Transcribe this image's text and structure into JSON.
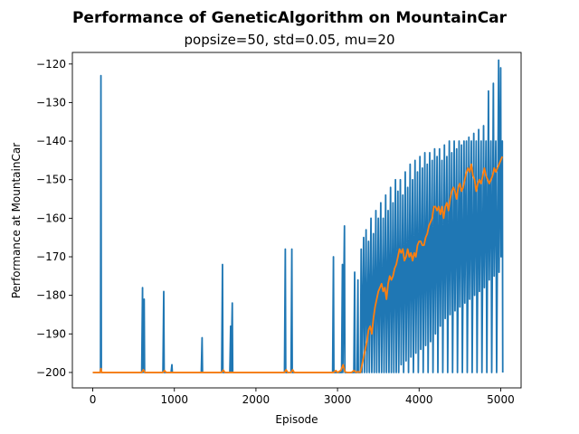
{
  "chart_data": {
    "type": "line",
    "title": "Performance of GeneticAlgorithm on MountainCar",
    "subtitle": "popsize=50, std=0.05, mu=20",
    "xlabel": "Episode",
    "ylabel": "Performance at MountainCar",
    "xlim": [
      -250,
      5250
    ],
    "ylim": [
      -204,
      -117
    ],
    "xticks": [
      0,
      1000,
      2000,
      3000,
      4000,
      5000
    ],
    "yticks": [
      -200,
      -190,
      -180,
      -170,
      -160,
      -150,
      -140,
      -130,
      -120
    ],
    "grid": false,
    "series": [
      {
        "color": "#1f77b4",
        "points": [
          [
            0,
            -200
          ],
          [
            90,
            -200
          ],
          [
            95,
            -199
          ],
          [
            100,
            -123
          ],
          [
            105,
            -200
          ],
          [
            600,
            -200
          ],
          [
            610,
            -178
          ],
          [
            615,
            -200
          ],
          [
            630,
            -181
          ],
          [
            635,
            -200
          ],
          [
            860,
            -200
          ],
          [
            870,
            -179
          ],
          [
            875,
            -200
          ],
          [
            960,
            -200
          ],
          [
            970,
            -198
          ],
          [
            975,
            -200
          ],
          [
            1330,
            -200
          ],
          [
            1340,
            -191
          ],
          [
            1345,
            -200
          ],
          [
            1580,
            -200
          ],
          [
            1590,
            -172
          ],
          [
            1595,
            -200
          ],
          [
            1680,
            -200
          ],
          [
            1690,
            -188
          ],
          [
            1695,
            -200
          ],
          [
            1710,
            -182
          ],
          [
            1715,
            -200
          ],
          [
            2350,
            -200
          ],
          [
            2360,
            -168
          ],
          [
            2365,
            -200
          ],
          [
            2430,
            -200
          ],
          [
            2440,
            -168
          ],
          [
            2445,
            -200
          ],
          [
            2940,
            -200
          ],
          [
            2950,
            -170
          ],
          [
            2955,
            -200
          ],
          [
            3050,
            -200
          ],
          [
            3060,
            -172
          ],
          [
            3065,
            -200
          ],
          [
            3085,
            -162
          ],
          [
            3090,
            -200
          ],
          [
            3200,
            -200
          ],
          [
            3210,
            -174
          ],
          [
            3215,
            -200
          ],
          [
            3240,
            -200
          ],
          [
            3250,
            -176
          ],
          [
            3255,
            -200
          ],
          [
            3280,
            -200
          ],
          [
            3290,
            -168
          ],
          [
            3300,
            -200
          ],
          [
            3320,
            -165
          ],
          [
            3330,
            -200
          ],
          [
            3350,
            -163
          ],
          [
            3360,
            -200
          ],
          [
            3380,
            -166
          ],
          [
            3390,
            -200
          ],
          [
            3410,
            -160
          ],
          [
            3420,
            -200
          ],
          [
            3440,
            -164
          ],
          [
            3450,
            -200
          ],
          [
            3470,
            -158
          ],
          [
            3480,
            -200
          ],
          [
            3500,
            -160
          ],
          [
            3510,
            -200
          ],
          [
            3530,
            -156
          ],
          [
            3540,
            -200
          ],
          [
            3560,
            -160
          ],
          [
            3570,
            -200
          ],
          [
            3590,
            -154
          ],
          [
            3600,
            -200
          ],
          [
            3620,
            -158
          ],
          [
            3630,
            -200
          ],
          [
            3650,
            -152
          ],
          [
            3660,
            -200
          ],
          [
            3680,
            -156
          ],
          [
            3690,
            -200
          ],
          [
            3710,
            -150
          ],
          [
            3720,
            -200
          ],
          [
            3740,
            -153
          ],
          [
            3750,
            -200
          ],
          [
            3770,
            -150
          ],
          [
            3780,
            -198
          ],
          [
            3800,
            -154
          ],
          [
            3810,
            -200
          ],
          [
            3830,
            -148
          ],
          [
            3840,
            -197
          ],
          [
            3860,
            -152
          ],
          [
            3870,
            -200
          ],
          [
            3890,
            -146
          ],
          [
            3900,
            -196
          ],
          [
            3920,
            -150
          ],
          [
            3930,
            -200
          ],
          [
            3950,
            -145
          ],
          [
            3960,
            -195
          ],
          [
            3980,
            -148
          ],
          [
            3990,
            -200
          ],
          [
            4010,
            -144
          ],
          [
            4020,
            -194
          ],
          [
            4040,
            -147
          ],
          [
            4050,
            -200
          ],
          [
            4070,
            -143
          ],
          [
            4080,
            -193
          ],
          [
            4100,
            -146
          ],
          [
            4110,
            -200
          ],
          [
            4130,
            -143
          ],
          [
            4140,
            -192
          ],
          [
            4160,
            -145
          ],
          [
            4170,
            -200
          ],
          [
            4190,
            -142
          ],
          [
            4200,
            -190
          ],
          [
            4220,
            -144
          ],
          [
            4230,
            -200
          ],
          [
            4250,
            -142
          ],
          [
            4260,
            -188
          ],
          [
            4280,
            -145
          ],
          [
            4290,
            -200
          ],
          [
            4310,
            -141
          ],
          [
            4320,
            -186
          ],
          [
            4340,
            -144
          ],
          [
            4350,
            -200
          ],
          [
            4370,
            -140
          ],
          [
            4380,
            -185
          ],
          [
            4400,
            -143
          ],
          [
            4410,
            -200
          ],
          [
            4430,
            -140
          ],
          [
            4440,
            -184
          ],
          [
            4460,
            -142
          ],
          [
            4470,
            -200
          ],
          [
            4490,
            -140
          ],
          [
            4500,
            -183
          ],
          [
            4520,
            -141
          ],
          [
            4530,
            -200
          ],
          [
            4550,
            -140
          ],
          [
            4560,
            -182
          ],
          [
            4580,
            -140
          ],
          [
            4590,
            -200
          ],
          [
            4610,
            -139
          ],
          [
            4620,
            -181
          ],
          [
            4640,
            -140
          ],
          [
            4650,
            -200
          ],
          [
            4670,
            -138
          ],
          [
            4680,
            -180
          ],
          [
            4700,
            -140
          ],
          [
            4710,
            -200
          ],
          [
            4730,
            -137
          ],
          [
            4740,
            -179
          ],
          [
            4760,
            -140
          ],
          [
            4770,
            -200
          ],
          [
            4790,
            -136
          ],
          [
            4800,
            -178
          ],
          [
            4820,
            -140
          ],
          [
            4830,
            -200
          ],
          [
            4850,
            -127
          ],
          [
            4860,
            -176
          ],
          [
            4880,
            -140
          ],
          [
            4890,
            -200
          ],
          [
            4910,
            -125
          ],
          [
            4920,
            -175
          ],
          [
            4940,
            -140
          ],
          [
            4950,
            -200
          ],
          [
            4975,
            -119
          ],
          [
            4980,
            -174
          ],
          [
            5000,
            -121
          ],
          [
            5005,
            -170
          ],
          [
            5020,
            -140
          ],
          [
            5025,
            -200
          ]
        ]
      },
      {
        "color": "#ff7f0e",
        "points": [
          [
            0,
            -200
          ],
          [
            90,
            -200
          ],
          [
            100,
            -199
          ],
          [
            110,
            -200
          ],
          [
            600,
            -200
          ],
          [
            620,
            -199.3
          ],
          [
            640,
            -200
          ],
          [
            860,
            -200
          ],
          [
            880,
            -199.5
          ],
          [
            900,
            -200
          ],
          [
            1580,
            -200
          ],
          [
            1600,
            -199.4
          ],
          [
            1620,
            -200
          ],
          [
            2350,
            -200
          ],
          [
            2370,
            -199.3
          ],
          [
            2390,
            -200
          ],
          [
            2430,
            -200
          ],
          [
            2450,
            -199.3
          ],
          [
            2470,
            -200
          ],
          [
            2950,
            -200
          ],
          [
            2980,
            -199.5
          ],
          [
            3000,
            -200
          ],
          [
            3040,
            -199.5
          ],
          [
            3070,
            -198
          ],
          [
            3090,
            -199.8
          ],
          [
            3120,
            -200
          ],
          [
            3170,
            -200
          ],
          [
            3200,
            -199.5
          ],
          [
            3230,
            -200
          ],
          [
            3250,
            -199.8
          ],
          [
            3280,
            -200
          ],
          [
            3300,
            -198
          ],
          [
            3320,
            -196
          ],
          [
            3340,
            -194
          ],
          [
            3360,
            -192
          ],
          [
            3380,
            -189
          ],
          [
            3400,
            -188
          ],
          [
            3420,
            -190
          ],
          [
            3440,
            -186
          ],
          [
            3460,
            -183
          ],
          [
            3480,
            -181
          ],
          [
            3500,
            -179
          ],
          [
            3520,
            -178
          ],
          [
            3540,
            -177
          ],
          [
            3560,
            -179
          ],
          [
            3580,
            -178
          ],
          [
            3600,
            -181
          ],
          [
            3620,
            -177
          ],
          [
            3640,
            -175
          ],
          [
            3660,
            -176
          ],
          [
            3680,
            -175
          ],
          [
            3700,
            -173
          ],
          [
            3720,
            -172
          ],
          [
            3740,
            -170
          ],
          [
            3760,
            -168
          ],
          [
            3780,
            -169
          ],
          [
            3800,
            -168
          ],
          [
            3820,
            -171
          ],
          [
            3840,
            -170
          ],
          [
            3860,
            -168
          ],
          [
            3880,
            -170
          ],
          [
            3900,
            -169
          ],
          [
            3920,
            -171
          ],
          [
            3940,
            -169
          ],
          [
            3960,
            -170
          ],
          [
            3980,
            -167
          ],
          [
            4000,
            -166
          ],
          [
            4020,
            -166
          ],
          [
            4040,
            -167
          ],
          [
            4060,
            -167
          ],
          [
            4080,
            -165
          ],
          [
            4100,
            -164
          ],
          [
            4120,
            -162
          ],
          [
            4140,
            -161
          ],
          [
            4160,
            -160
          ],
          [
            4180,
            -157
          ],
          [
            4200,
            -157
          ],
          [
            4220,
            -158
          ],
          [
            4240,
            -157
          ],
          [
            4260,
            -159
          ],
          [
            4280,
            -157
          ],
          [
            4300,
            -160
          ],
          [
            4320,
            -157
          ],
          [
            4340,
            -156
          ],
          [
            4360,
            -158
          ],
          [
            4380,
            -155
          ],
          [
            4400,
            -153
          ],
          [
            4420,
            -152
          ],
          [
            4440,
            -153
          ],
          [
            4460,
            -155
          ],
          [
            4480,
            -152
          ],
          [
            4500,
            -151
          ],
          [
            4520,
            -153
          ],
          [
            4540,
            -152
          ],
          [
            4560,
            -150
          ],
          [
            4580,
            -148
          ],
          [
            4600,
            -147
          ],
          [
            4620,
            -148
          ],
          [
            4640,
            -146
          ],
          [
            4660,
            -149
          ],
          [
            4680,
            -150
          ],
          [
            4700,
            -153
          ],
          [
            4720,
            -151
          ],
          [
            4740,
            -150
          ],
          [
            4760,
            -151
          ],
          [
            4780,
            -149
          ],
          [
            4800,
            -147
          ],
          [
            4820,
            -149
          ],
          [
            4840,
            -150
          ],
          [
            4860,
            -151
          ],
          [
            4880,
            -150
          ],
          [
            4900,
            -149
          ],
          [
            4920,
            -147
          ],
          [
            4940,
            -148
          ],
          [
            4960,
            -147
          ],
          [
            4980,
            -146
          ],
          [
            5000,
            -145
          ],
          [
            5020,
            -144
          ]
        ]
      }
    ]
  }
}
